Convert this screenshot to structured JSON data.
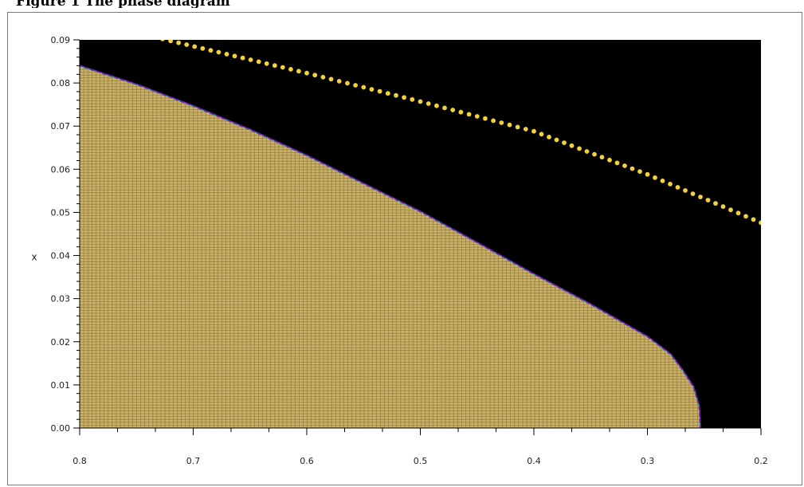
{
  "caption": {
    "text": "Figure 1  The phase diagram"
  },
  "chart_data": {
    "type": "heatmap",
    "title": "",
    "xlabel": "",
    "ylabel": "x",
    "xlim": [
      0.8,
      0.2
    ],
    "ylim": [
      0.0,
      0.09
    ],
    "x_reversed": true,
    "x_ticks": [
      "0.8",
      "0.7",
      "0.6",
      "0.5",
      "0.4",
      "0.3",
      "0.2"
    ],
    "x_tick_values": [
      0.8,
      0.7,
      0.6,
      0.5,
      0.4,
      0.3,
      0.2
    ],
    "y_ticks": [
      "0.00",
      "0.01",
      "0.02",
      "0.03",
      "0.04",
      "0.05",
      "0.06",
      "0.07",
      "0.08",
      "0.09"
    ],
    "y_tick_values": [
      0.0,
      0.01,
      0.02,
      0.03,
      0.04,
      0.05,
      0.06,
      0.07,
      0.08,
      0.09
    ],
    "background_color": "#000000",
    "fill_color": "#c9b36a",
    "grid_line_color": "#9a7f3e",
    "edge_colors": [
      "#6a1fb0",
      "#1fb0b0"
    ],
    "dotted_line_color": "#f2d23c",
    "region_boundary": {
      "x": [
        0.8,
        0.75,
        0.7,
        0.65,
        0.6,
        0.55,
        0.5,
        0.45,
        0.4,
        0.35,
        0.3,
        0.28,
        0.27,
        0.26,
        0.255,
        0.254
      ],
      "y": [
        0.0838,
        0.0795,
        0.0745,
        0.069,
        0.063,
        0.0565,
        0.05,
        0.0428,
        0.0355,
        0.0285,
        0.021,
        0.017,
        0.0135,
        0.0095,
        0.005,
        0.0
      ]
    },
    "series": [
      {
        "type": "dotted-line",
        "x": [
          0.727,
          0.6,
          0.5,
          0.4,
          0.3,
          0.2
        ],
        "y": [
          0.0902,
          0.0823,
          0.0757,
          0.0688,
          0.0588,
          0.0476
        ]
      }
    ]
  }
}
